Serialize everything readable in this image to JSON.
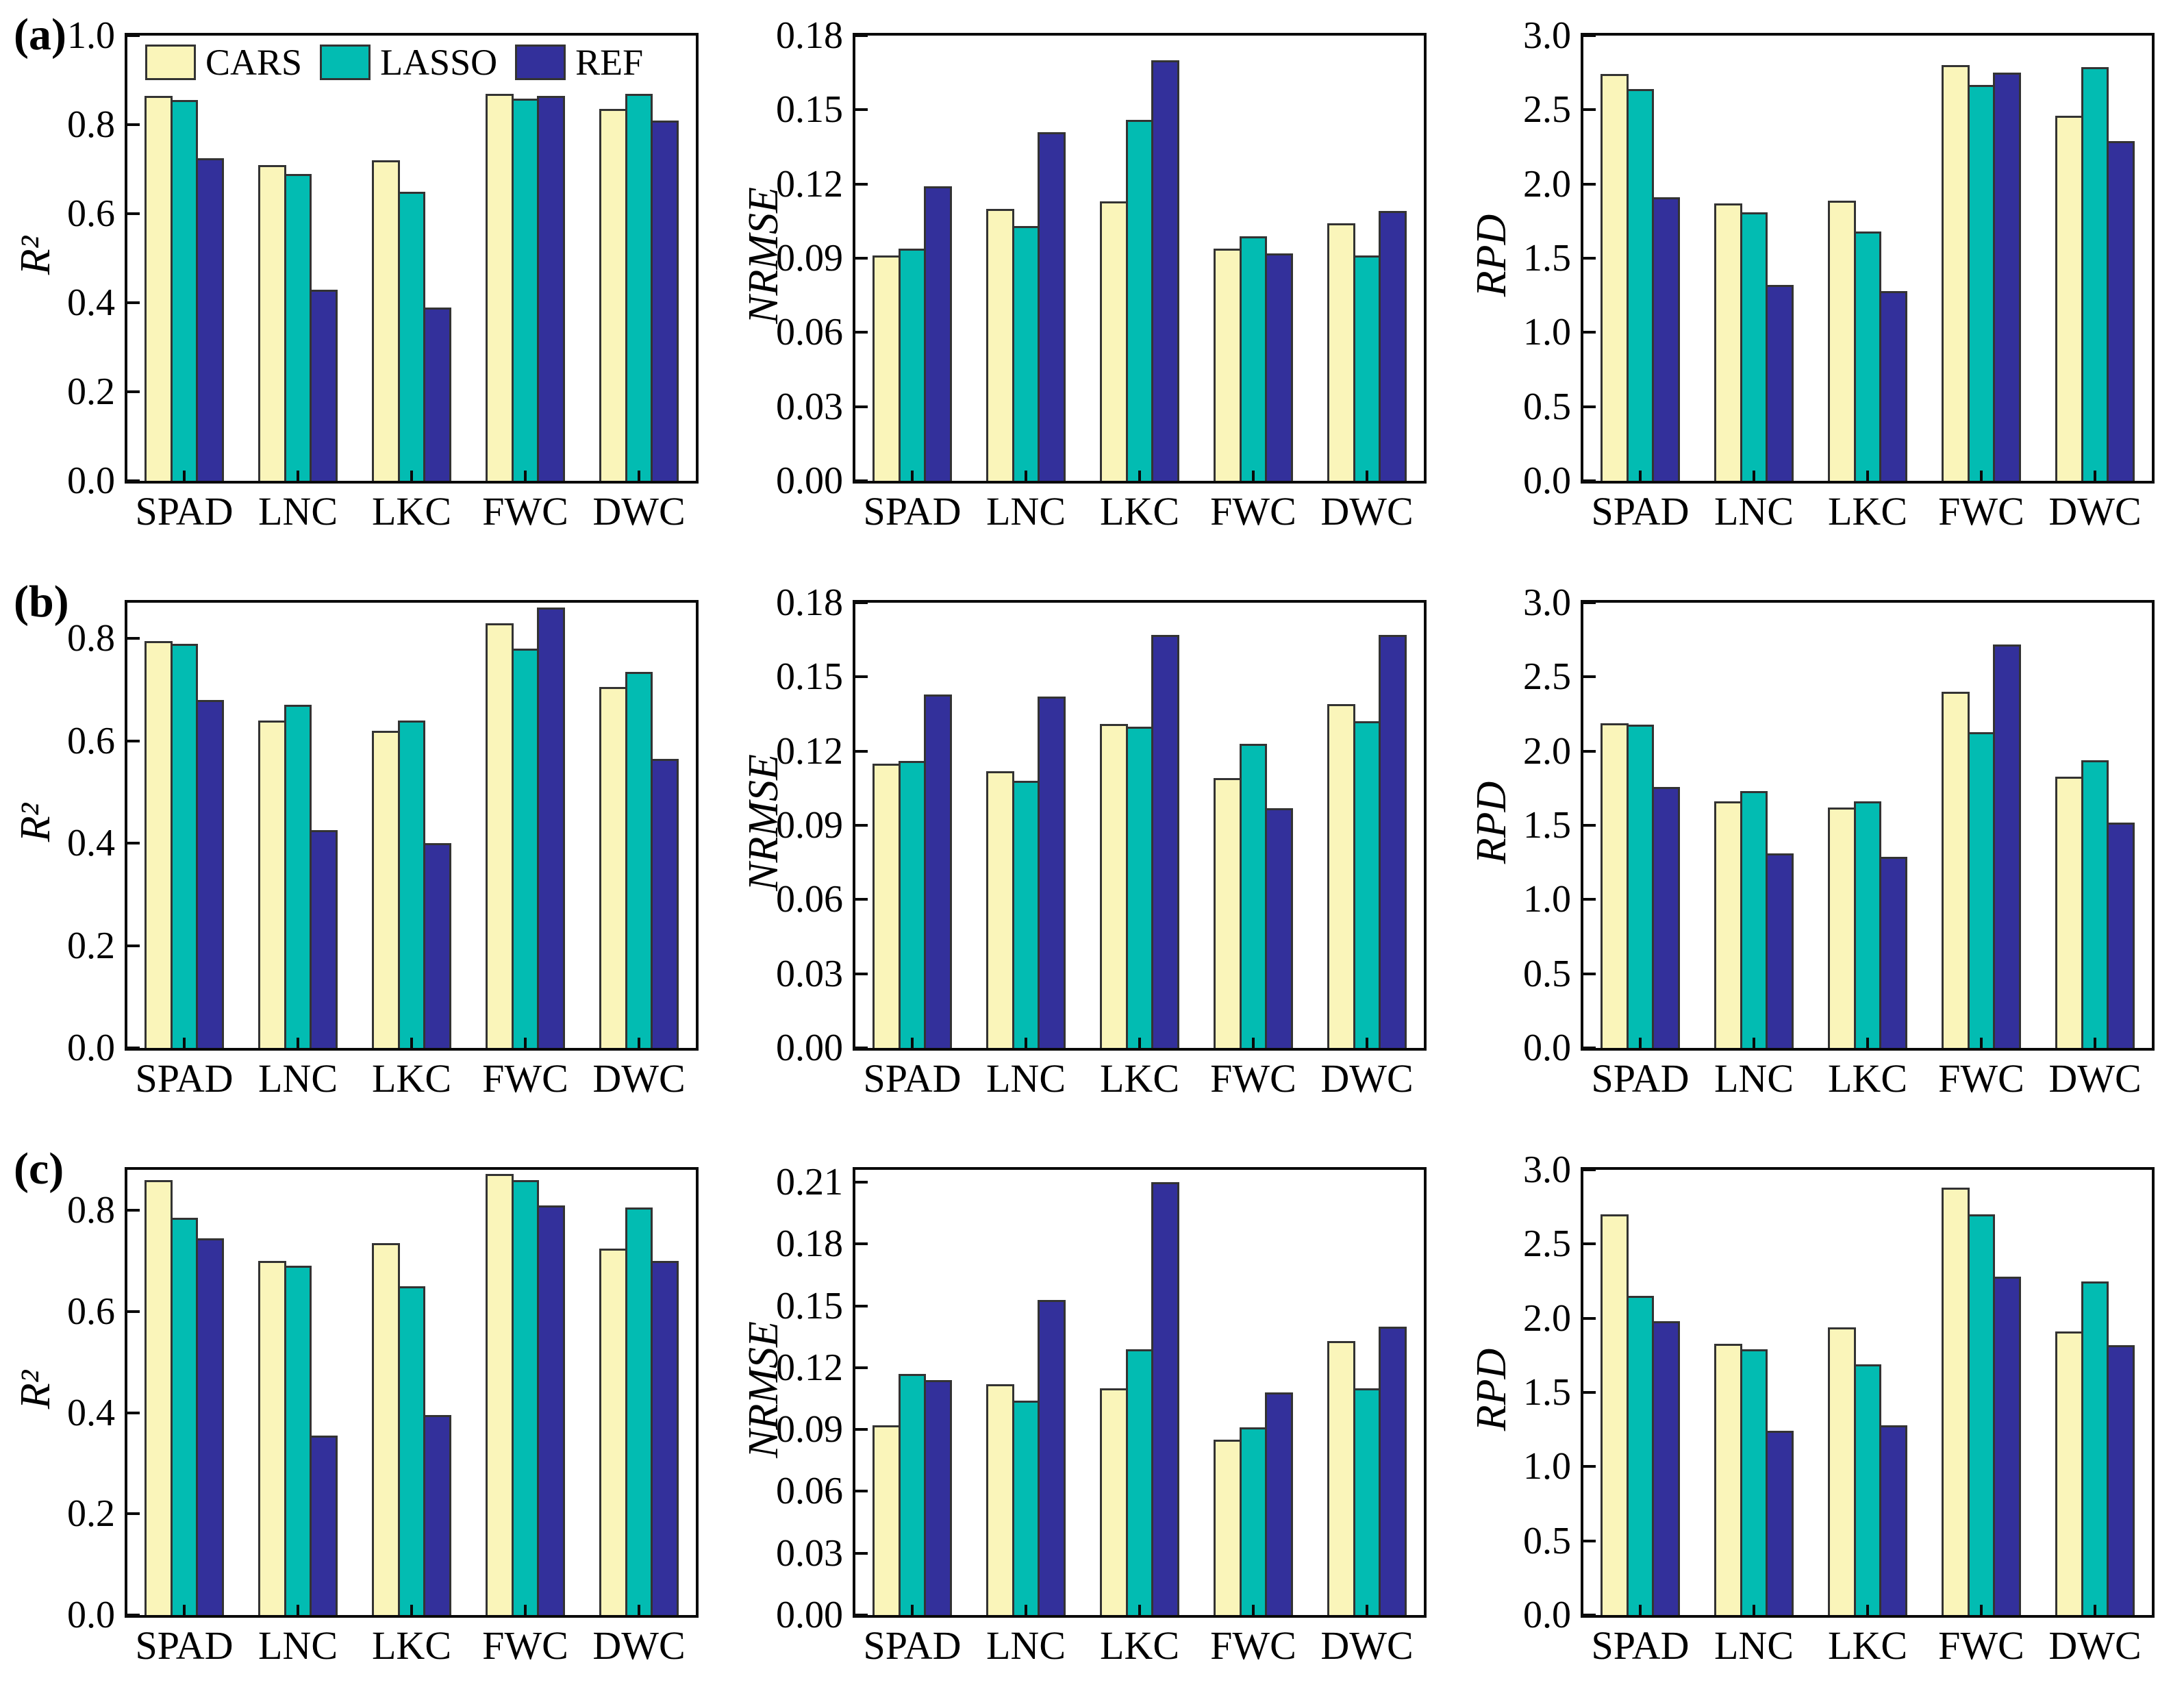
{
  "figure": {
    "legend": {
      "items": [
        {
          "label": "CARS",
          "color": "#faf5ba"
        },
        {
          "label": "LASSO",
          "color": "#02bcb2"
        },
        {
          "label": "REF",
          "color": "#33309b"
        }
      ]
    },
    "colors": {
      "bar_border": "#333333",
      "axis": "#0a0a0a",
      "background": "#ffffff",
      "text": "#000000"
    },
    "panel_labels": [
      "(a)",
      "(b)",
      "(c)"
    ],
    "x_categories": [
      "SPAD",
      "LNC",
      "LKC",
      "FWC",
      "DWC"
    ]
  },
  "chart_data": [
    {
      "type": "bar",
      "panel": "a",
      "metric": "R2",
      "panel_label": "(a)",
      "ylabel": "R²",
      "ylim": [
        0,
        1.0
      ],
      "ytick_values": [
        0.0,
        0.2,
        0.4,
        0.6,
        0.8,
        1.0
      ],
      "ytick_labels": [
        "0.0",
        "0.2",
        "0.4",
        "0.6",
        "0.8",
        "1.0"
      ],
      "categories": [
        "SPAD",
        "LNC",
        "LKC",
        "FWC",
        "DWC"
      ],
      "legend_visible": true,
      "grid": false,
      "series": [
        {
          "name": "CARS",
          "values": [
            0.865,
            0.71,
            0.72,
            0.87,
            0.835
          ]
        },
        {
          "name": "LASSO",
          "values": [
            0.855,
            0.69,
            0.65,
            0.858,
            0.87
          ]
        },
        {
          "name": "REF",
          "values": [
            0.725,
            0.43,
            0.39,
            0.865,
            0.81
          ]
        }
      ]
    },
    {
      "type": "bar",
      "panel": "a",
      "metric": "NRMSE",
      "ylabel": "NRMSE",
      "ylim": [
        0,
        0.18
      ],
      "ytick_values": [
        0.0,
        0.03,
        0.06,
        0.09,
        0.12,
        0.15,
        0.18
      ],
      "ytick_labels": [
        "0.00",
        "0.03",
        "0.06",
        "0.09",
        "0.12",
        "0.15",
        "0.18"
      ],
      "categories": [
        "SPAD",
        "LNC",
        "LKC",
        "FWC",
        "DWC"
      ],
      "legend_visible": false,
      "grid": false,
      "series": [
        {
          "name": "CARS",
          "values": [
            0.091,
            0.11,
            0.113,
            0.094,
            0.104
          ]
        },
        {
          "name": "LASSO",
          "values": [
            0.094,
            0.103,
            0.146,
            0.099,
            0.091
          ]
        },
        {
          "name": "REF",
          "values": [
            0.119,
            0.141,
            0.17,
            0.092,
            0.109
          ]
        }
      ]
    },
    {
      "type": "bar",
      "panel": "a",
      "metric": "RPD",
      "ylabel": "RPD",
      "ylim": [
        0,
        3.0
      ],
      "ytick_values": [
        0.0,
        0.5,
        1.0,
        1.5,
        2.0,
        2.5,
        3.0
      ],
      "ytick_labels": [
        "0.0",
        "0.5",
        "1.0",
        "1.5",
        "2.0",
        "2.5",
        "3.0"
      ],
      "categories": [
        "SPAD",
        "LNC",
        "LKC",
        "FWC",
        "DWC"
      ],
      "legend_visible": false,
      "grid": false,
      "series": [
        {
          "name": "CARS",
          "values": [
            2.74,
            1.87,
            1.89,
            2.8,
            2.46
          ]
        },
        {
          "name": "LASSO",
          "values": [
            2.64,
            1.81,
            1.68,
            2.67,
            2.79
          ]
        },
        {
          "name": "REF",
          "values": [
            1.91,
            1.32,
            1.28,
            2.75,
            2.29
          ]
        }
      ]
    },
    {
      "type": "bar",
      "panel": "b",
      "metric": "R2",
      "panel_label": "(b)",
      "ylabel": "R²",
      "ylim": [
        0,
        0.87
      ],
      "ytick_values": [
        0.0,
        0.2,
        0.4,
        0.6,
        0.8
      ],
      "ytick_labels": [
        "0.0",
        "0.2",
        "0.4",
        "0.6",
        "0.8"
      ],
      "categories": [
        "SPAD",
        "LNC",
        "LKC",
        "FWC",
        "DWC"
      ],
      "legend_visible": false,
      "grid": false,
      "series": [
        {
          "name": "CARS",
          "values": [
            0.795,
            0.64,
            0.62,
            0.83,
            0.705
          ]
        },
        {
          "name": "LASSO",
          "values": [
            0.79,
            0.67,
            0.64,
            0.78,
            0.735
          ]
        },
        {
          "name": "REF",
          "values": [
            0.68,
            0.425,
            0.4,
            0.86,
            0.565
          ]
        }
      ]
    },
    {
      "type": "bar",
      "panel": "b",
      "metric": "NRMSE",
      "ylabel": "NRMSE",
      "ylim": [
        0,
        0.18
      ],
      "ytick_values": [
        0.0,
        0.03,
        0.06,
        0.09,
        0.12,
        0.15,
        0.18
      ],
      "ytick_labels": [
        "0.00",
        "0.03",
        "0.06",
        "0.09",
        "0.12",
        "0.15",
        "0.18"
      ],
      "categories": [
        "SPAD",
        "LNC",
        "LKC",
        "FWC",
        "DWC"
      ],
      "legend_visible": false,
      "grid": false,
      "series": [
        {
          "name": "CARS",
          "values": [
            0.115,
            0.112,
            0.131,
            0.109,
            0.139
          ]
        },
        {
          "name": "LASSO",
          "values": [
            0.116,
            0.108,
            0.13,
            0.123,
            0.132
          ]
        },
        {
          "name": "REF",
          "values": [
            0.143,
            0.142,
            0.167,
            0.097,
            0.167
          ]
        }
      ]
    },
    {
      "type": "bar",
      "panel": "b",
      "metric": "RPD",
      "ylabel": "RPD",
      "ylim": [
        0,
        3.0
      ],
      "ytick_values": [
        0.0,
        0.5,
        1.0,
        1.5,
        2.0,
        2.5,
        3.0
      ],
      "ytick_labels": [
        "0.0",
        "0.5",
        "1.0",
        "1.5",
        "2.0",
        "2.5",
        "3.0"
      ],
      "categories": [
        "SPAD",
        "LNC",
        "LKC",
        "FWC",
        "DWC"
      ],
      "legend_visible": false,
      "grid": false,
      "series": [
        {
          "name": "CARS",
          "values": [
            2.19,
            1.66,
            1.62,
            2.4,
            1.83
          ]
        },
        {
          "name": "LASSO",
          "values": [
            2.18,
            1.73,
            1.66,
            2.13,
            1.94
          ]
        },
        {
          "name": "REF",
          "values": [
            1.76,
            1.31,
            1.29,
            2.72,
            1.52
          ]
        }
      ]
    },
    {
      "type": "bar",
      "panel": "c",
      "metric": "R2",
      "panel_label": "(c)",
      "ylabel": "R²",
      "ylim": [
        0,
        0.88
      ],
      "ytick_values": [
        0.0,
        0.2,
        0.4,
        0.6,
        0.8
      ],
      "ytick_labels": [
        "0.0",
        "0.2",
        "0.4",
        "0.6",
        "0.8"
      ],
      "categories": [
        "SPAD",
        "LNC",
        "LKC",
        "FWC",
        "DWC"
      ],
      "legend_visible": false,
      "grid": false,
      "series": [
        {
          "name": "CARS",
          "values": [
            0.86,
            0.7,
            0.735,
            0.872,
            0.725
          ]
        },
        {
          "name": "LASSO",
          "values": [
            0.785,
            0.69,
            0.65,
            0.86,
            0.805
          ]
        },
        {
          "name": "REF",
          "values": [
            0.745,
            0.355,
            0.395,
            0.81,
            0.7
          ]
        }
      ]
    },
    {
      "type": "bar",
      "panel": "c",
      "metric": "NRMSE",
      "ylabel": "NRMSE",
      "ylim": [
        0,
        0.216
      ],
      "ytick_values": [
        0.0,
        0.03,
        0.06,
        0.09,
        0.12,
        0.15,
        0.18,
        0.21
      ],
      "ytick_labels": [
        "0.00",
        "0.03",
        "0.06",
        "0.09",
        "0.12",
        "0.15",
        "0.18",
        "0.21"
      ],
      "categories": [
        "SPAD",
        "LNC",
        "LKC",
        "FWC",
        "DWC"
      ],
      "legend_visible": false,
      "grid": false,
      "series": [
        {
          "name": "CARS",
          "values": [
            0.092,
            0.112,
            0.11,
            0.085,
            0.133
          ]
        },
        {
          "name": "LASSO",
          "values": [
            0.117,
            0.104,
            0.129,
            0.091,
            0.11
          ]
        },
        {
          "name": "REF",
          "values": [
            0.114,
            0.153,
            0.21,
            0.108,
            0.14
          ]
        }
      ]
    },
    {
      "type": "bar",
      "panel": "c",
      "metric": "RPD",
      "ylabel": "RPD",
      "ylim": [
        0,
        3.0
      ],
      "ytick_values": [
        0.0,
        0.5,
        1.0,
        1.5,
        2.0,
        2.5,
        3.0
      ],
      "ytick_labels": [
        "0.0",
        "0.5",
        "1.0",
        "1.5",
        "2.0",
        "2.5",
        "3.0"
      ],
      "categories": [
        "SPAD",
        "LNC",
        "LKC",
        "FWC",
        "DWC"
      ],
      "legend_visible": false,
      "grid": false,
      "series": [
        {
          "name": "CARS",
          "values": [
            2.7,
            1.83,
            1.94,
            2.88,
            1.91
          ]
        },
        {
          "name": "LASSO",
          "values": [
            2.15,
            1.79,
            1.69,
            2.7,
            2.25
          ]
        },
        {
          "name": "REF",
          "values": [
            1.98,
            1.24,
            1.28,
            2.28,
            1.82
          ]
        }
      ]
    }
  ]
}
